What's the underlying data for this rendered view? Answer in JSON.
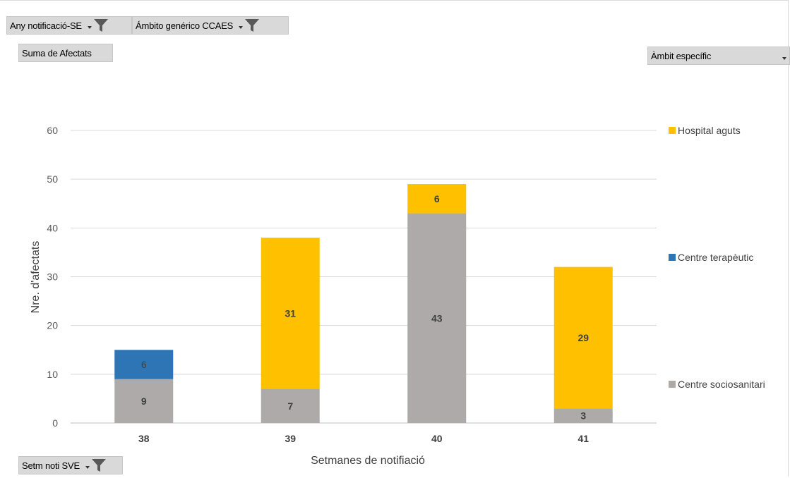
{
  "filters": {
    "year_label": "Any notificació-SE",
    "scope_label": "Ámbito genérico  CCAES",
    "values_label": "Suma de Afectats",
    "specific_label": "Àmbit específic",
    "week_label": "Setm noti SVE"
  },
  "icons": [
    "filter-funnel-icon",
    "dropdown-arrow-icon"
  ],
  "chart_data": {
    "type": "bar",
    "stacked": true,
    "categories": [
      "38",
      "39",
      "40",
      "41"
    ],
    "xlabel": "Setmanes de notifiació",
    "ylabel": "Nre. d'afectats",
    "ylim": [
      0,
      60
    ],
    "yticks": [
      "0",
      "10",
      "20",
      "30",
      "40",
      "50",
      "60"
    ],
    "grid": true,
    "legend_position": "right",
    "series": [
      {
        "name": "Centre sociosanitari",
        "color": "#aeaaaa",
        "values": [
          9,
          7,
          43,
          3
        ]
      },
      {
        "name": "Centre terapèutic",
        "color": "#2e75b6",
        "values": [
          6,
          0,
          0,
          0
        ]
      },
      {
        "name": "Hospital aguts",
        "color": "#ffc000",
        "values": [
          0,
          31,
          6,
          29
        ]
      }
    ],
    "legend_order": [
      "Hospital aguts",
      "Centre terapèutic",
      "Centre sociosanitari"
    ]
  }
}
